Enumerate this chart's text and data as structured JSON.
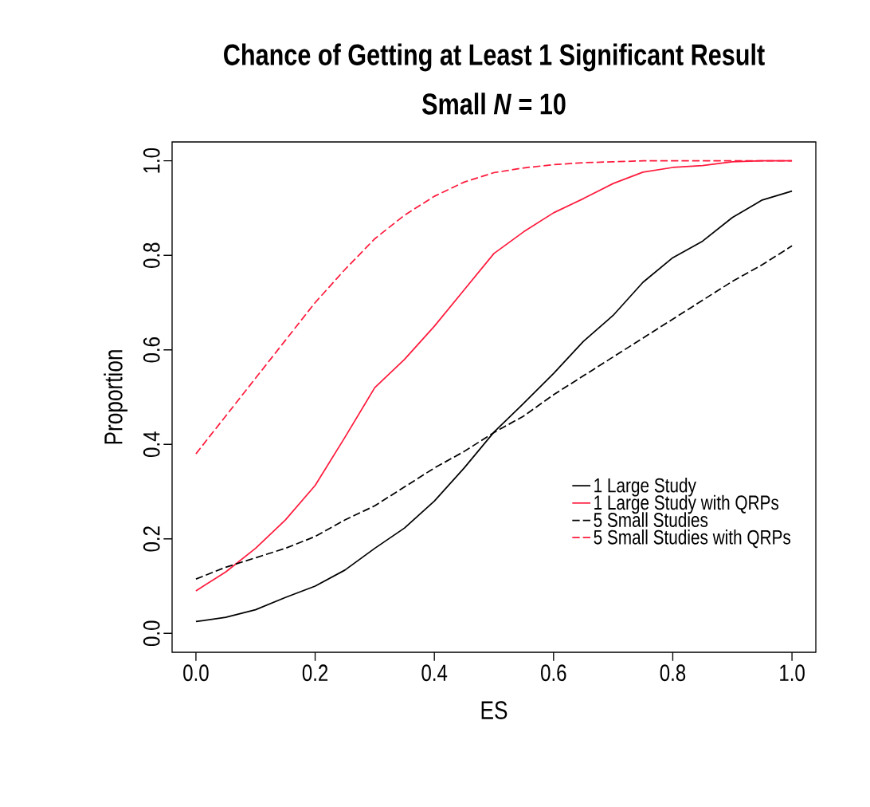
{
  "chart_data": {
    "type": "line",
    "title": "Chance of Getting at Least 1 Significant Result",
    "subtitle": "Small *N* = 10",
    "xlabel": "ES",
    "ylabel": "Proportion",
    "x": [
      0,
      0.05,
      0.1,
      0.15,
      0.2,
      0.25,
      0.3,
      0.35,
      0.4,
      0.45,
      0.5,
      0.55,
      0.6,
      0.65,
      0.7,
      0.75,
      0.8,
      0.85,
      0.9,
      0.95,
      1.0
    ],
    "series": [
      {
        "name": "1 Large Study",
        "color": "#000000",
        "line_style": "solid",
        "values": [
          0.025,
          0.034,
          0.05,
          0.076,
          0.1,
          0.134,
          0.18,
          0.223,
          0.28,
          0.35,
          0.426,
          0.487,
          0.55,
          0.618,
          0.673,
          0.743,
          0.795,
          0.83,
          0.88,
          0.917,
          0.936
        ]
      },
      {
        "name": "1 Large Study with QRPs",
        "color": "#ff1a3c",
        "line_style": "solid",
        "values": [
          0.09,
          0.13,
          0.18,
          0.24,
          0.313,
          0.415,
          0.52,
          0.58,
          0.65,
          0.727,
          0.804,
          0.85,
          0.89,
          0.92,
          0.952,
          0.976,
          0.986,
          0.99,
          0.998,
          1.0,
          1.0
        ]
      },
      {
        "name": "5 Small Studies",
        "color": "#000000",
        "line_style": "dashed",
        "values": [
          0.115,
          0.14,
          0.16,
          0.18,
          0.205,
          0.24,
          0.27,
          0.31,
          0.35,
          0.385,
          0.425,
          0.46,
          0.505,
          0.545,
          0.585,
          0.625,
          0.665,
          0.705,
          0.745,
          0.78,
          0.82
        ]
      },
      {
        "name": "5 Small Studies with QRPs",
        "color": "#ff1a3c",
        "line_style": "dashed",
        "values": [
          0.38,
          0.46,
          0.54,
          0.62,
          0.7,
          0.77,
          0.835,
          0.885,
          0.925,
          0.955,
          0.975,
          0.985,
          0.992,
          0.996,
          0.998,
          1.0,
          1.0,
          1.0,
          1.0,
          1.0,
          1.0
        ]
      }
    ],
    "xlim": [
      -0.04,
      1.04
    ],
    "ylim": [
      -0.04,
      1.04
    ],
    "xticks": [
      {
        "value": 0,
        "label": "0.0"
      },
      {
        "value": 0.2,
        "label": "0.2"
      },
      {
        "value": 0.4,
        "label": "0.4"
      },
      {
        "value": 0.6,
        "label": "0.6"
      },
      {
        "value": 0.8,
        "label": "0.8"
      },
      {
        "value": 1.0,
        "label": "1.0"
      }
    ],
    "yticks": [
      {
        "value": 0,
        "label": "0.0"
      },
      {
        "value": 0.2,
        "label": "0.2"
      },
      {
        "value": 0.4,
        "label": "0.4"
      },
      {
        "value": 0.6,
        "label": "0.6"
      },
      {
        "value": 0.8,
        "label": "0.8"
      },
      {
        "value": 1.0,
        "label": "1.0"
      }
    ],
    "grid": false,
    "legend": "bottom right",
    "marker": "none"
  }
}
